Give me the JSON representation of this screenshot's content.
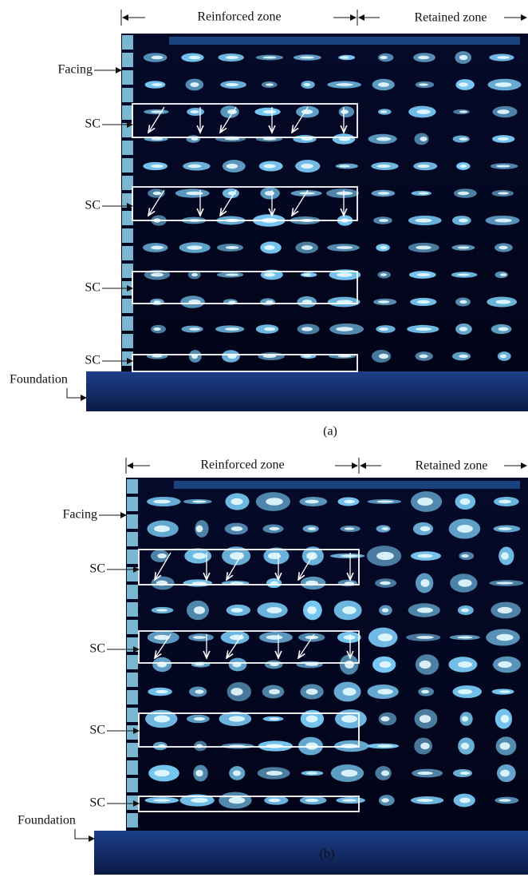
{
  "panels": [
    {
      "zones": {
        "reinforced": "Reinforced zone",
        "retained": "Retained zone"
      },
      "facing": "Facing",
      "sc": [
        "SC",
        "SC",
        "SC",
        "SC"
      ],
      "foundation": "Foundation",
      "caption": "(a)"
    },
    {
      "zones": {
        "reinforced": "Reinforced zone",
        "retained": "Retained zone"
      },
      "facing": "Facing",
      "sc": [
        "SC",
        "SC",
        "SC",
        "SC"
      ],
      "foundation": "Foundation",
      "caption": "(b)"
    }
  ]
}
